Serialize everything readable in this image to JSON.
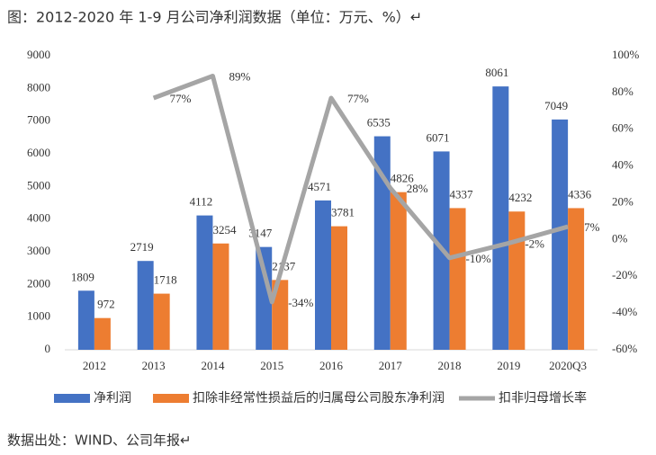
{
  "chart_data": {
    "type": "bar",
    "title": "图：2012-2020 年 1-9 月公司净利润数据（单位：万元、%）↵",
    "source": "数据出处：WIND、公司年报↵",
    "categories": [
      "2012",
      "2013",
      "2014",
      "2015",
      "2016",
      "2017",
      "2018",
      "2019",
      "2020Q3"
    ],
    "series": [
      {
        "name": "净利润",
        "color": "#4472c4",
        "values": [
          1809,
          2719,
          4112,
          3147,
          4571,
          6535,
          6071,
          8061,
          7049
        ]
      },
      {
        "name": "扣除非经常性损益后的归属母公司股东净利润",
        "color": "#ed7d31",
        "values": [
          972,
          1718,
          3254,
          2137,
          3781,
          4826,
          4337,
          4232,
          4336
        ]
      },
      {
        "name": "扣非归母增长率",
        "color": "#a5a5a5",
        "type": "line",
        "axis": "y2",
        "values": [
          null,
          77,
          89,
          -34,
          77,
          28,
          -10,
          -2,
          7
        ],
        "value_labels": [
          null,
          "77%",
          "89%",
          "-34%",
          "77%",
          "28%",
          "-10%",
          "-2%",
          "7%"
        ]
      }
    ],
    "ylim": [
      0,
      9000
    ],
    "yticks": [
      0,
      1000,
      2000,
      3000,
      4000,
      5000,
      6000,
      7000,
      8000,
      9000
    ],
    "y2lim": [
      -60,
      100
    ],
    "y2ticks": [
      {
        "value": -60,
        "label": "-60%"
      },
      {
        "value": -40,
        "label": "-40%"
      },
      {
        "value": -20,
        "label": "-20%"
      },
      {
        "value": 0,
        "label": "0%"
      },
      {
        "value": 20,
        "label": "20%"
      },
      {
        "value": 40,
        "label": "40%"
      },
      {
        "value": 60,
        "label": "60%"
      },
      {
        "value": 80,
        "label": "80%"
      },
      {
        "value": 100,
        "label": "100%"
      }
    ],
    "grid": false,
    "legend": "bottom"
  }
}
